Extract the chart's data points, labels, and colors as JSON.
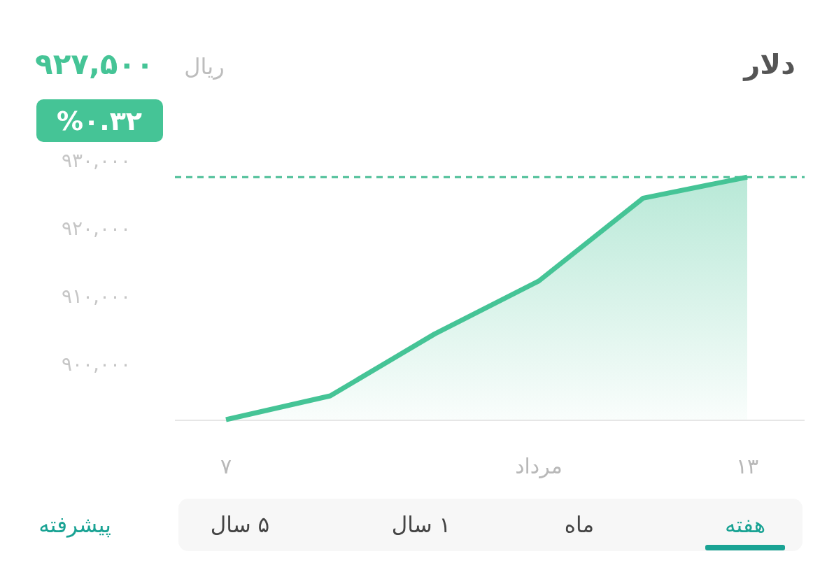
{
  "chart_data": {
    "type": "area",
    "title": "دلار",
    "categories": [
      "۷",
      null,
      null,
      "مرداد",
      null,
      "۱۳"
    ],
    "series": [
      {
        "color": "#45c496",
        "values": [
          891800,
          895300,
          904400,
          912200,
          924400,
          927500
        ]
      }
    ],
    "ylim": [
      891800,
      930000
    ],
    "yticks": [
      {
        "value": 900000,
        "label": "۹۰۰,۰۰۰"
      },
      {
        "value": 910000,
        "label": "۹۱۰,۰۰۰"
      },
      {
        "value": 920000,
        "label": "۹۲۰,۰۰۰"
      },
      {
        "value": 930000,
        "label": "۹۳۰,۰۰۰"
      }
    ],
    "ref_lines": [
      {
        "axis": "y",
        "value": 927500,
        "color": "#4dbf98",
        "line_style": "dashed"
      }
    ],
    "annotations": [
      "۹۲۷,۵۰۰",
      "ریال",
      "%۰.۳۲",
      "هفته",
      "ماه",
      "۱ سال",
      "۵ سال",
      "پیشرفته"
    ]
  }
}
